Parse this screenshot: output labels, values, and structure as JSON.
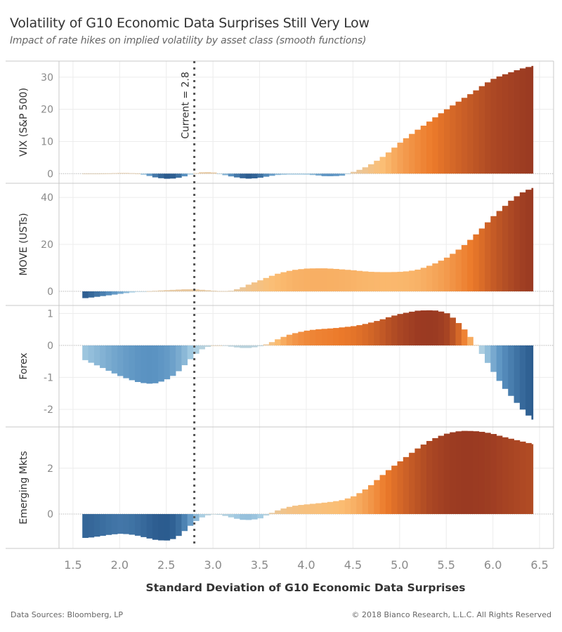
{
  "chart_data": {
    "type": "bar",
    "title": "Volatility of G10 Economic Data Surprises Still Very Low",
    "subtitle": "Impact of rate hikes on implied volatility by asset class (smooth functions)",
    "xlabel": "Standard Deviation of G10 Economic Data Surprises",
    "xlim": [
      1.35,
      6.65
    ],
    "x_ticks": [
      "1.5",
      "2.0",
      "2.5",
      "3.0",
      "3.5",
      "4.0",
      "4.5",
      "5.0",
      "5.5",
      "6.0",
      "6.5"
    ],
    "annotation": {
      "label": "Current = 2.8",
      "x": 2.8,
      "style": "dotted vertical line"
    },
    "grid": true,
    "color_scale": {
      "negative": [
        "#c5d5d8",
        "#a6cde3",
        "#5b93c2",
        "#2b5b8e"
      ],
      "positive": [
        "#e0ccb0",
        "#fbbe74",
        "#ec7a2a",
        "#9a3a22"
      ]
    },
    "x": [
      1.6,
      1.7,
      1.8,
      1.9,
      2.0,
      2.1,
      2.2,
      2.3,
      2.4,
      2.5,
      2.6,
      2.7,
      2.8,
      2.9,
      3.0,
      3.1,
      3.2,
      3.3,
      3.4,
      3.5,
      3.6,
      3.7,
      3.8,
      3.9,
      4.0,
      4.1,
      4.2,
      4.3,
      4.4,
      4.5,
      4.6,
      4.7,
      4.8,
      4.9,
      5.0,
      5.1,
      5.2,
      5.3,
      5.4,
      5.5,
      5.6,
      5.7,
      5.8,
      5.9,
      6.0,
      6.1,
      6.2,
      6.3,
      6.4,
      6.43
    ],
    "panels": [
      {
        "name": "VIX (S&P 500)",
        "ylim": [
          -3,
          35
        ],
        "y_ticks": [
          0,
          10,
          20,
          30
        ],
        "values": [
          0,
          0,
          0,
          0.1,
          0.2,
          0.2,
          0,
          -0.6,
          -1.3,
          -1.6,
          -1.5,
          -0.8,
          0.1,
          0.5,
          0.4,
          -0.3,
          -0.9,
          -1.4,
          -1.6,
          -1.3,
          -0.8,
          -0.4,
          -0.3,
          -0.3,
          -0.3,
          -0.5,
          -0.8,
          -0.8,
          -0.6,
          0.5,
          1.5,
          3,
          4.8,
          7,
          9.5,
          11.7,
          13.8,
          15.8,
          17.9,
          19.9,
          21.8,
          23.7,
          25.5,
          27.6,
          29.4,
          30.6,
          31.6,
          32.6,
          33.3,
          33.5
        ]
      },
      {
        "name": "MOVE (USTs)",
        "ylim": [
          -6,
          46
        ],
        "y_ticks": [
          0,
          20,
          40
        ],
        "values": [
          -3,
          -2.6,
          -2.1,
          -1.6,
          -1.1,
          -0.6,
          -0.2,
          0,
          0.3,
          0.5,
          0.7,
          0.9,
          0.9,
          0.6,
          0.3,
          0,
          0.3,
          1.4,
          3.2,
          4.6,
          6.2,
          7.6,
          8.6,
          9.3,
          9.7,
          9.8,
          9.8,
          9.6,
          9.3,
          9.0,
          8.6,
          8.3,
          8.2,
          8.2,
          8.3,
          8.6,
          9.3,
          10.6,
          12.2,
          14.2,
          16.8,
          19.9,
          23.5,
          27.5,
          31.8,
          35.3,
          38.8,
          41.8,
          43.6,
          44
        ]
      },
      {
        "name": "Forex",
        "ylim": [
          -2.55,
          1.25
        ],
        "y_ticks": [
          1,
          0,
          -1,
          -2
        ],
        "values": [
          -0.42,
          -0.55,
          -0.68,
          -0.82,
          -0.95,
          -1.06,
          -1.15,
          -1.2,
          -1.18,
          -1.07,
          -0.9,
          -0.6,
          -0.3,
          -0.08,
          0,
          0,
          -0.04,
          -0.08,
          -0.08,
          -0.03,
          0.06,
          0.2,
          0.32,
          0.4,
          0.46,
          0.5,
          0.52,
          0.54,
          0.57,
          0.6,
          0.65,
          0.72,
          0.8,
          0.9,
          0.98,
          1.04,
          1.09,
          1.1,
          1.09,
          1.02,
          0.8,
          0.48,
          0.1,
          -0.35,
          -0.8,
          -1.25,
          -1.6,
          -1.95,
          -2.25,
          -2.32
        ]
      },
      {
        "name": "Emerging Mkts",
        "ylim": [
          -1.5,
          3.8
        ],
        "y_ticks": [
          0,
          2
        ],
        "values": [
          -1.05,
          -1.02,
          -0.96,
          -0.9,
          -0.86,
          -0.88,
          -0.95,
          -1.05,
          -1.14,
          -1.16,
          -1.06,
          -0.72,
          -0.35,
          -0.1,
          0,
          -0.05,
          -0.15,
          -0.25,
          -0.26,
          -0.2,
          0,
          0.17,
          0.3,
          0.38,
          0.42,
          0.46,
          0.5,
          0.55,
          0.62,
          0.76,
          0.98,
          1.28,
          1.64,
          1.98,
          2.28,
          2.58,
          2.88,
          3.15,
          3.35,
          3.5,
          3.6,
          3.63,
          3.62,
          3.58,
          3.5,
          3.38,
          3.28,
          3.18,
          3.08,
          3.05
        ]
      }
    ]
  },
  "footer": {
    "source": "Data Sources: Bloomberg, LP",
    "copyright": "© 2018 Bianco Research, L.L.C. All Rights Reserved"
  }
}
